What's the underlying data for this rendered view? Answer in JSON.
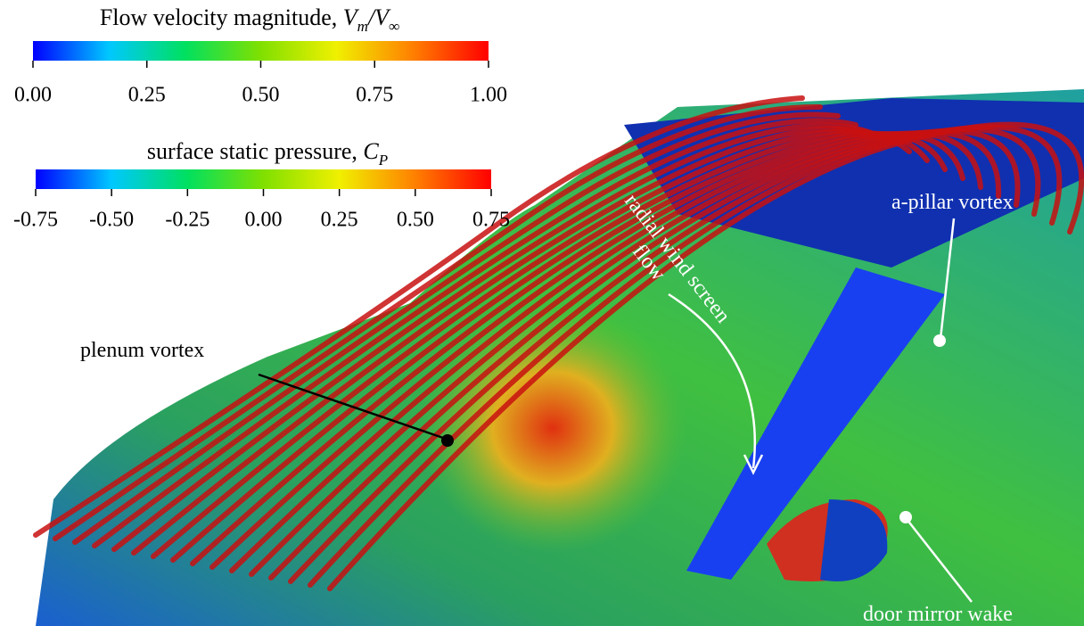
{
  "colorbars": [
    {
      "title": "Flow velocity magnitude, ",
      "symbol": [
        {
          "text": "V",
          "sub": "m"
        },
        {
          "text": "/V",
          "sub": "∞"
        }
      ],
      "range": [
        0,
        1
      ],
      "colors": [
        "#0000ff",
        "#00c8ff",
        "#00e060",
        "#80e000",
        "#f0f000",
        "#ff8000",
        "#ff0000"
      ],
      "ticks": [
        {
          "value": 0,
          "label": "0.00"
        },
        {
          "value": 0.25,
          "label": "0.25"
        },
        {
          "value": 0.5,
          "label": "0.50"
        },
        {
          "value": 0.75,
          "label": "0.75"
        },
        {
          "value": 1,
          "label": "1.00"
        }
      ]
    },
    {
      "title": "surface static pressure, ",
      "symbol": [
        {
          "text": "C",
          "sub": "P"
        }
      ],
      "range": [
        -0.75,
        0.75
      ],
      "colors": [
        "#0000ff",
        "#00c8ff",
        "#00e060",
        "#80e000",
        "#f0f000",
        "#ff8000",
        "#ff0000"
      ],
      "ticks": [
        {
          "value": -0.75,
          "label": "-0.75"
        },
        {
          "value": -0.5,
          "label": "-0.50"
        },
        {
          "value": -0.25,
          "label": "-0.25"
        },
        {
          "value": 0,
          "label": "0.00"
        },
        {
          "value": 0.25,
          "label": "0.25"
        },
        {
          "value": 0.5,
          "label": "0.50"
        },
        {
          "value": 0.75,
          "label": "0.75"
        }
      ]
    }
  ],
  "annotations": {
    "plenum": "plenum vortex",
    "radial": [
      "radial wind screen",
      "flow"
    ],
    "apillar": "a-pillar vortex",
    "mirror": "door mirror wake"
  }
}
